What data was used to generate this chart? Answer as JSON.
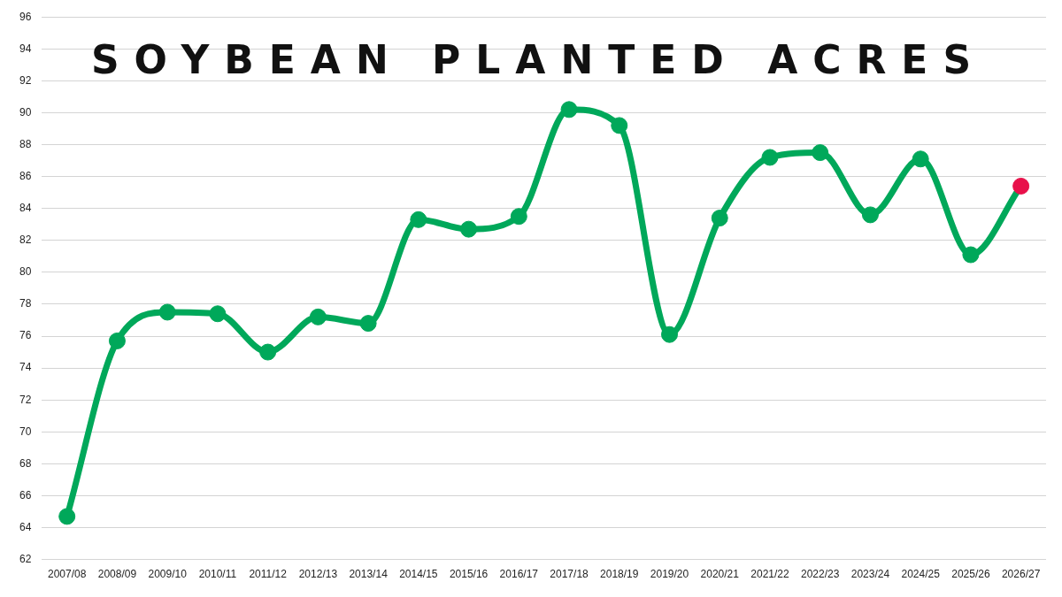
{
  "chart_data": {
    "type": "line",
    "title": "SOYBEAN PLANTED ACRES",
    "categories": [
      "2007/08",
      "2008/09",
      "2009/10",
      "2010/11",
      "2011/12",
      "2012/13",
      "2013/14",
      "2014/15",
      "2015/16",
      "2016/17",
      "2017/18",
      "2018/19",
      "2019/20",
      "2020/21",
      "2021/22",
      "2022/23",
      "2023/24",
      "2024/25",
      "2025/26",
      "2026/27"
    ],
    "series": [
      {
        "color": "#00a85a",
        "colors": [
          "#00a85a",
          "#00a85a",
          "#00a85a",
          "#00a85a",
          "#00a85a",
          "#00a85a",
          "#00a85a",
          "#00a85a",
          "#00a85a",
          "#00a85a",
          "#00a85a",
          "#00a85a",
          "#00a85a",
          "#00a85a",
          "#00a85a",
          "#00a85a",
          "#00a85a",
          "#00a85a",
          "#00a85a",
          "#e8104a"
        ],
        "values": [
          64.7,
          75.7,
          77.5,
          77.4,
          75.0,
          77.2,
          76.8,
          83.3,
          82.7,
          83.5,
          90.2,
          89.2,
          76.1,
          83.4,
          87.2,
          87.5,
          83.6,
          87.1,
          81.1,
          85.4
        ]
      }
    ],
    "ylim": [
      62,
      96
    ],
    "yticks": [
      62,
      64,
      66,
      68,
      70,
      72,
      74,
      76,
      78,
      80,
      82,
      84,
      86,
      88,
      90,
      92,
      94,
      96
    ],
    "grid": "y",
    "legend": false,
    "marker": "circle",
    "line_style": "solid"
  }
}
